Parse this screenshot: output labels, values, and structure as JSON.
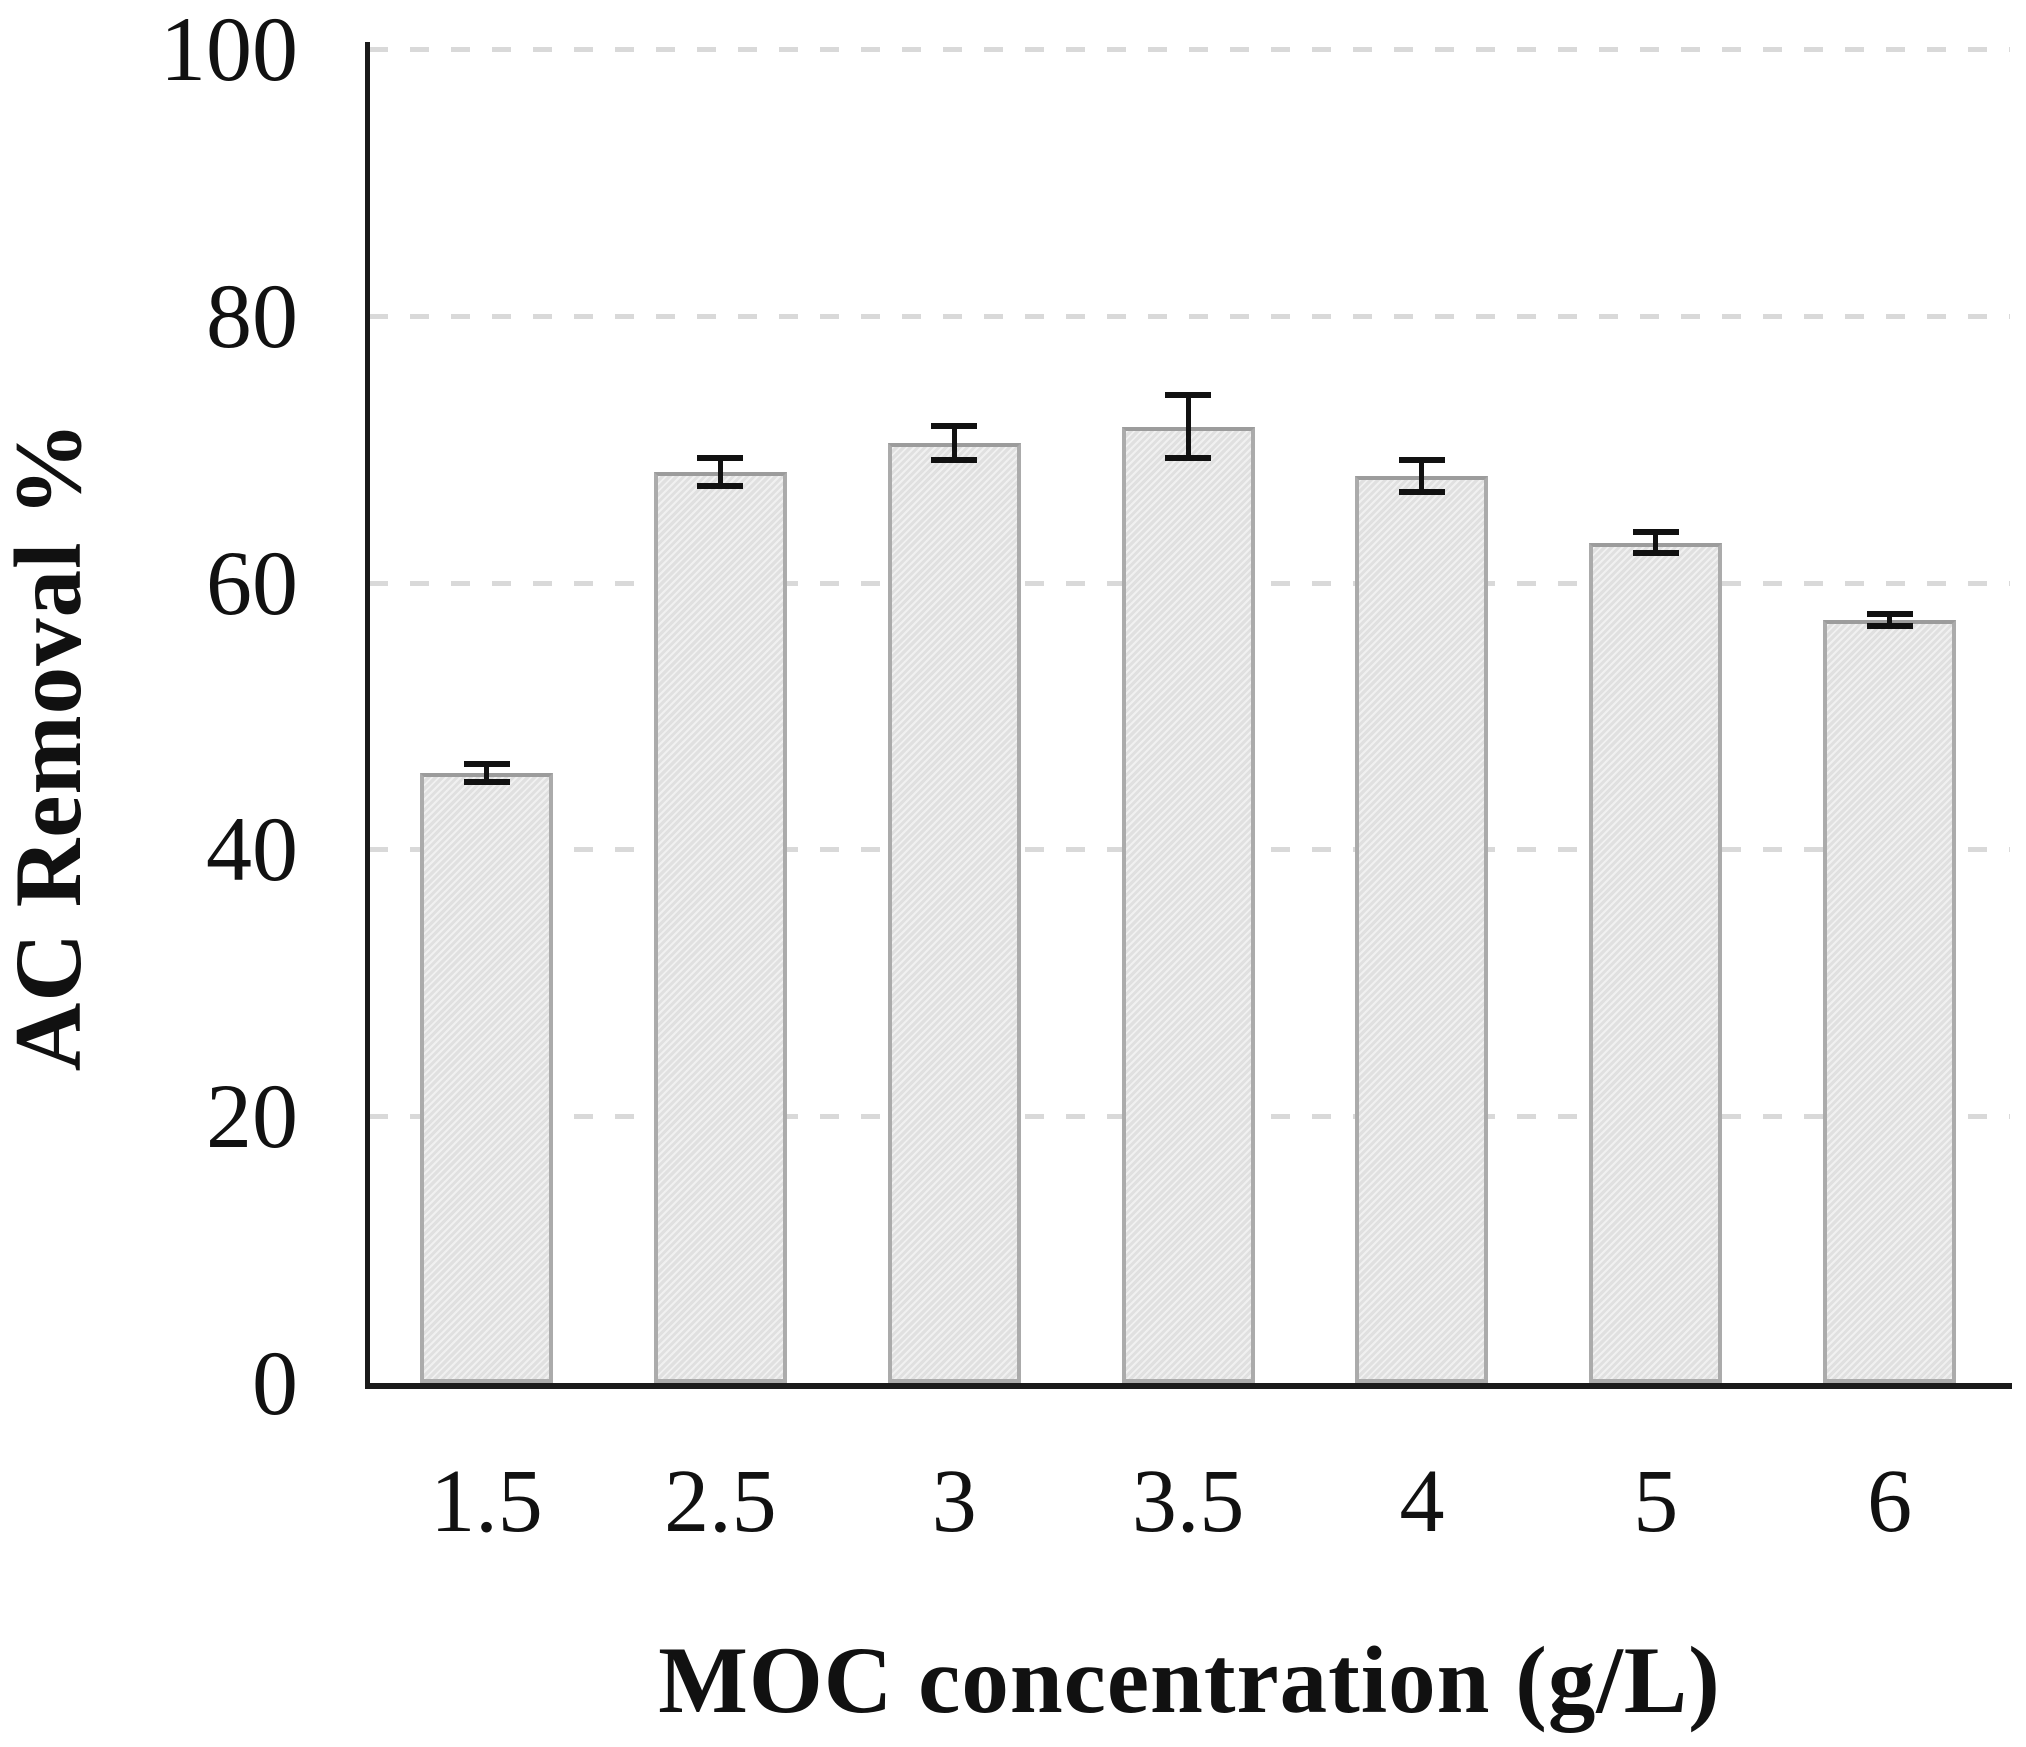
{
  "figure": {
    "background": "#ffffff",
    "axis_color": "#1a1a1a",
    "gridline_color": "#d9d9d9",
    "bar_fill": "#e7e7e7",
    "bar_border": "#ababab",
    "error_color": "#111111"
  },
  "chart_data": {
    "type": "bar",
    "title": "",
    "xlabel": "MOC concentration (g/L)",
    "ylabel": "AC Removal %",
    "categories": [
      "1.5",
      "2.5",
      "3",
      "3.5",
      "4",
      "5",
      "6"
    ],
    "values": [
      45.7,
      68.3,
      70.5,
      71.7,
      68.0,
      63.0,
      57.2
    ],
    "errors": [
      0.9,
      1.3,
      1.5,
      2.6,
      1.4,
      1.0,
      0.7
    ],
    "ylim": [
      0,
      100
    ],
    "yticks": [
      0,
      20,
      40,
      60,
      80,
      100
    ],
    "legend": "none",
    "grid": "horizontal-dashed",
    "bar_style": "light-gray textured fill, gray border, black error bars"
  }
}
